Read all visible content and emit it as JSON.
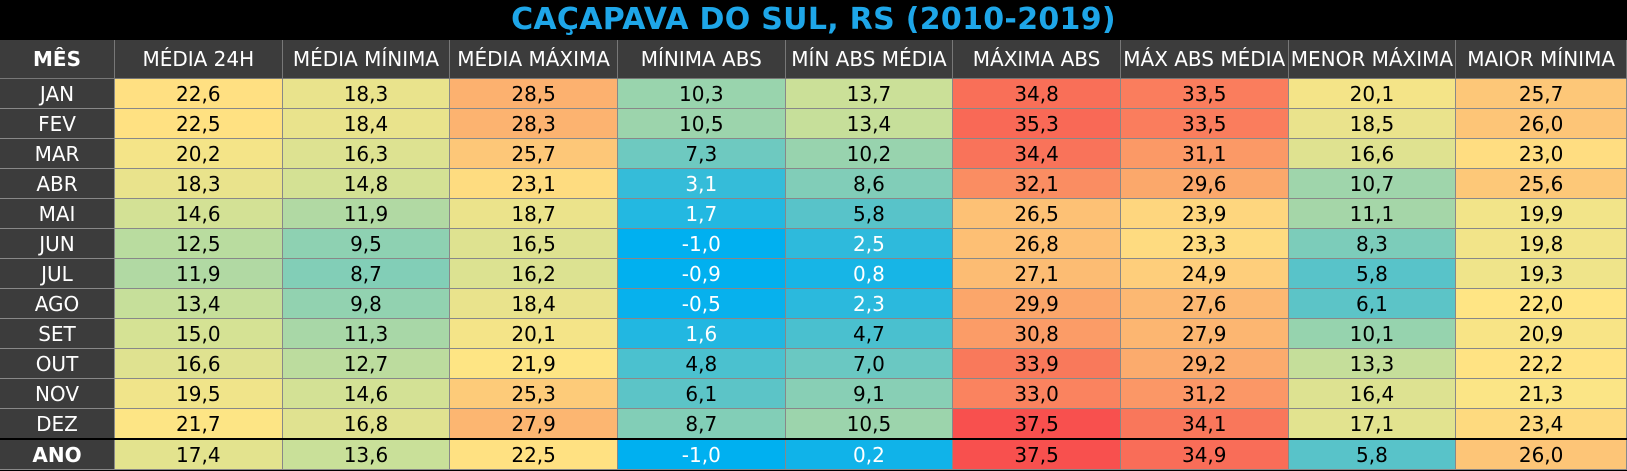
{
  "title": "CAÇAPAVA DO SUL, RS (2010-2019)",
  "chart_data": {
    "type": "table",
    "title": "CAÇAPAVA DO SUL, RS (2010-2019)",
    "corner_label": "MÊS",
    "columns": [
      "MÉDIA 24H",
      "MÉDIA MÍNIMA",
      "MÉDIA MÁXIMA",
      "MÍNIMA ABS",
      "MÍN ABS MÉDIA",
      "MÁXIMA ABS",
      "MÁX ABS MÉDIA",
      "MENOR MÁXIMA",
      "MAIOR MÍNIMA"
    ],
    "rows": [
      {
        "label": "JAN",
        "values": [
          "22,6",
          "18,3",
          "28,5",
          "10,3",
          "13,7",
          "34,8",
          "33,5",
          "20,1",
          "25,7"
        ]
      },
      {
        "label": "FEV",
        "values": [
          "22,5",
          "18,4",
          "28,3",
          "10,5",
          "13,4",
          "35,3",
          "33,5",
          "18,5",
          "26,0"
        ]
      },
      {
        "label": "MAR",
        "values": [
          "20,2",
          "16,3",
          "25,7",
          "7,3",
          "10,2",
          "34,4",
          "31,1",
          "16,6",
          "23,0"
        ]
      },
      {
        "label": "ABR",
        "values": [
          "18,3",
          "14,8",
          "23,1",
          "3,1",
          "8,6",
          "32,1",
          "29,6",
          "10,7",
          "25,6"
        ]
      },
      {
        "label": "MAI",
        "values": [
          "14,6",
          "11,9",
          "18,7",
          "1,7",
          "5,8",
          "26,5",
          "23,9",
          "11,1",
          "19,9"
        ]
      },
      {
        "label": "JUN",
        "values": [
          "12,5",
          "9,5",
          "16,5",
          "-1,0",
          "2,5",
          "26,8",
          "23,3",
          "8,3",
          "19,8"
        ]
      },
      {
        "label": "JUL",
        "values": [
          "11,9",
          "8,7",
          "16,2",
          "-0,9",
          "0,8",
          "27,1",
          "24,9",
          "5,8",
          "19,3"
        ]
      },
      {
        "label": "AGO",
        "values": [
          "13,4",
          "9,8",
          "18,4",
          "-0,5",
          "2,3",
          "29,9",
          "27,6",
          "6,1",
          "22,0"
        ]
      },
      {
        "label": "SET",
        "values": [
          "15,0",
          "11,3",
          "20,1",
          "1,6",
          "4,7",
          "30,8",
          "27,9",
          "10,1",
          "20,9"
        ]
      },
      {
        "label": "OUT",
        "values": [
          "16,6",
          "12,7",
          "21,9",
          "4,8",
          "7,0",
          "33,9",
          "29,2",
          "13,3",
          "22,2"
        ]
      },
      {
        "label": "NOV",
        "values": [
          "19,5",
          "14,6",
          "25,3",
          "6,1",
          "9,1",
          "33,0",
          "31,2",
          "16,4",
          "21,3"
        ]
      },
      {
        "label": "DEZ",
        "values": [
          "21,7",
          "16,8",
          "27,9",
          "8,7",
          "10,5",
          "37,5",
          "34,1",
          "17,1",
          "23,4"
        ]
      }
    ],
    "total_row": {
      "label": "ANO",
      "values": [
        "17,4",
        "13,6",
        "22,5",
        "-1,0",
        "0,2",
        "37,5",
        "34,9",
        "5,8",
        "26,0"
      ]
    },
    "color_scale": {
      "cold": "#00b0f0",
      "cool": "#5bc4c8",
      "mild": "#cfe196",
      "warm": "#ffe584",
      "hot": "#fba56a",
      "hottest": "#f8504e"
    },
    "title_color": "#1ea6e8",
    "header_background": "#3c3c3c"
  }
}
